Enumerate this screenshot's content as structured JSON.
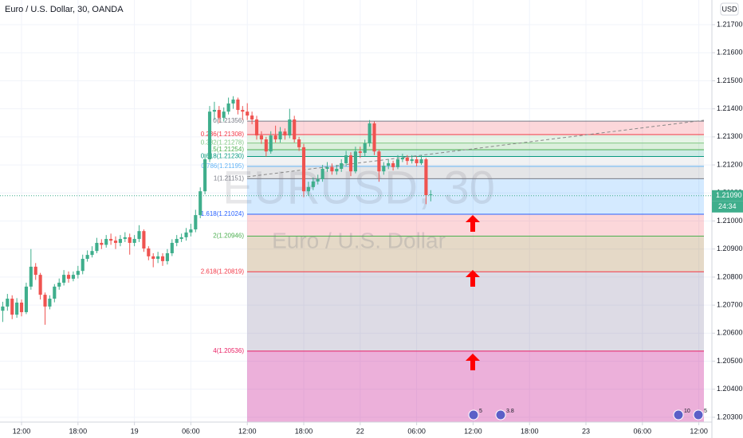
{
  "chart_data": {
    "type": "candlestick",
    "title": "Euro / U.S. Dollar, 30, OANDA",
    "watermark": "EURUSD, 30",
    "watermark_subtitle": "Euro / U.S. Dollar",
    "currency_button": "USD",
    "up_color": "#3fae8c",
    "down_color": "#ef5350",
    "grid": true,
    "xlim": [
      -2.29,
      73.39
    ],
    "ylim": [
      1.20283,
      1.21788
    ],
    "xticks": [
      {
        "value": 0,
        "label": "12:00"
      },
      {
        "value": 6,
        "label": "18:00"
      },
      {
        "value": 12,
        "label": "19"
      },
      {
        "value": 18,
        "label": "06:00"
      },
      {
        "value": 24,
        "label": "12:00"
      },
      {
        "value": 30,
        "label": "18:00"
      },
      {
        "value": 36,
        "label": "22"
      },
      {
        "value": 42,
        "label": "06:00"
      },
      {
        "value": 48,
        "label": "12:00"
      },
      {
        "value": 54,
        "label": "18:00"
      },
      {
        "value": 60,
        "label": "23"
      },
      {
        "value": 66,
        "label": "06:00"
      },
      {
        "value": 72,
        "label": "12:00"
      }
    ],
    "yticks": [
      {
        "value": 1.217,
        "label": "1.21700"
      },
      {
        "value": 1.216,
        "label": "1.21600"
      },
      {
        "value": 1.215,
        "label": "1.21500"
      },
      {
        "value": 1.214,
        "label": "1.21400"
      },
      {
        "value": 1.213,
        "label": "1.21300"
      },
      {
        "value": 1.212,
        "label": "1.21200"
      },
      {
        "value": 1.211,
        "label": "1.21100"
      },
      {
        "value": 1.21,
        "label": "1.21000"
      },
      {
        "value": 1.209,
        "label": "1.20900"
      },
      {
        "value": 1.208,
        "label": "1.20800"
      },
      {
        "value": 1.207,
        "label": "1.20700"
      },
      {
        "value": 1.206,
        "label": "1.20600"
      },
      {
        "value": 1.205,
        "label": "1.20500"
      },
      {
        "value": 1.204,
        "label": "1.20400"
      },
      {
        "value": 1.203,
        "label": "1.20300"
      }
    ],
    "x": [
      -2,
      -1.5,
      -1,
      -0.5,
      0,
      0.5,
      1,
      1.5,
      2,
      2.5,
      3,
      3.5,
      4,
      4.5,
      5,
      5.5,
      6,
      6.5,
      7,
      7.5,
      8,
      8.5,
      9,
      9.5,
      10,
      10.5,
      11,
      11.5,
      12,
      12.5,
      13,
      13.5,
      14,
      14.5,
      15,
      15.5,
      16,
      16.5,
      17,
      17.5,
      18,
      18.5,
      19,
      19.5,
      20,
      20.5,
      21,
      21.5,
      22,
      22.5,
      23,
      23.5,
      24,
      24.5,
      25,
      25.5,
      26,
      26.5,
      27,
      27.5,
      28,
      28.5,
      29,
      29.5,
      30,
      30.5,
      31,
      31.5,
      32,
      32.5,
      33,
      33.5,
      34,
      34.5,
      35,
      35.5,
      36,
      36.5,
      37,
      37.5,
      38,
      38.5,
      39,
      39.5,
      40,
      40.5,
      41,
      41.5,
      42,
      42.5,
      43,
      43.5
    ],
    "open": [
      1.2068,
      1.20695,
      1.20723,
      1.20666,
      1.20709,
      1.20675,
      1.20766,
      1.20837,
      1.20808,
      1.20737,
      1.20695,
      1.20723,
      1.20766,
      1.2078,
      1.20808,
      1.20794,
      1.20808,
      1.20822,
      1.20865,
      1.20879,
      1.20893,
      1.20922,
      1.20915,
      1.20936,
      1.2093,
      1.20922,
      1.20936,
      1.20942,
      1.20922,
      1.20936,
      1.20964,
      1.20902,
      1.20874,
      1.20865,
      1.20874,
      1.20857,
      1.20885,
      1.20922,
      1.20936,
      1.20942,
      1.20959,
      1.2097,
      1.21021,
      1.21106,
      1.2122,
      1.2139,
      1.21396,
      1.21368,
      1.2139,
      1.21419,
      1.21433,
      1.21396,
      1.2139,
      1.21376,
      1.21362,
      1.21305,
      1.21291,
      1.21248,
      1.21305,
      1.21291,
      1.21319,
      1.21305,
      1.21362,
      1.21291,
      1.21263,
      1.21106,
      1.21121,
      1.21141,
      1.21149,
      1.21186,
      1.21192,
      1.21177,
      1.21186,
      1.21206,
      1.21234,
      1.21177,
      1.21248,
      1.21243,
      1.21277,
      1.21348,
      1.21248,
      1.21177,
      1.21197,
      1.21206,
      1.21192,
      1.2122,
      1.21226,
      1.21214,
      1.2122,
      1.21206,
      1.2122,
      1.21092
    ],
    "high": [
      1.20712,
      1.2074,
      1.20735,
      1.20725,
      1.2072,
      1.2078,
      1.209,
      1.2085,
      1.20815,
      1.20745,
      1.20735,
      1.20775,
      1.20795,
      1.20825,
      1.2082,
      1.2082,
      1.2084,
      1.2088,
      1.20895,
      1.2091,
      1.2094,
      1.20935,
      1.2095,
      1.20955,
      1.20945,
      1.2095,
      1.2096,
      1.20955,
      1.2095,
      1.20985,
      1.2097,
      1.2091,
      1.20885,
      1.2089,
      1.20885,
      1.209,
      1.20935,
      1.2095,
      1.20955,
      1.20975,
      1.2099,
      1.2104,
      1.2112,
      1.2124,
      1.2141,
      1.21425,
      1.2141,
      1.21405,
      1.2144,
      1.21445,
      1.2144,
      1.2141,
      1.2142,
      1.2139,
      1.21375,
      1.2132,
      1.213,
      1.2132,
      1.2134,
      1.21335,
      1.2133,
      1.214,
      1.21375,
      1.213,
      1.21275,
      1.2114,
      1.21155,
      1.21165,
      1.212,
      1.2121,
      1.21205,
      1.212,
      1.2122,
      1.2125,
      1.21245,
      1.21265,
      1.21265,
      1.2129,
      1.2136,
      1.21355,
      1.21255,
      1.2121,
      1.2122,
      1.21215,
      1.21235,
      1.2124,
      1.21235,
      1.21235,
      1.2123,
      1.21235,
      1.21225,
      1.2111
    ],
    "low": [
      1.2064,
      1.2068,
      1.2065,
      1.20655,
      1.2066,
      1.20668,
      1.20755,
      1.2079,
      1.2072,
      1.2063,
      1.20685,
      1.2071,
      1.20755,
      1.2077,
      1.2078,
      1.20785,
      1.20795,
      1.2081,
      1.20855,
      1.2087,
      1.20885,
      1.209,
      1.20905,
      1.20915,
      1.209,
      1.2091,
      1.20925,
      1.2088,
      1.2091,
      1.20925,
      1.2089,
      1.2086,
      1.20835,
      1.2085,
      1.2084,
      1.20845,
      1.20875,
      1.2091,
      1.20925,
      1.2093,
      1.20945,
      1.2096,
      1.2101,
      1.21095,
      1.2121,
      1.2136,
      1.2135,
      1.21355,
      1.2138,
      1.214,
      1.2138,
      1.2136,
      1.2136,
      1.21345,
      1.2129,
      1.21275,
      1.2123,
      1.2124,
      1.2128,
      1.2128,
      1.2129,
      1.21295,
      1.2128,
      1.2125,
      1.21085,
      1.2109,
      1.2111,
      1.2113,
      1.2114,
      1.21175,
      1.21165,
      1.21165,
      1.21175,
      1.21195,
      1.2116,
      1.2117,
      1.21225,
      1.2123,
      1.21265,
      1.21235,
      1.2114,
      1.21165,
      1.21185,
      1.2118,
      1.21185,
      1.2121,
      1.212,
      1.21205,
      1.21195,
      1.212,
      1.2106,
      1.2107
    ],
    "close": [
      1.20695,
      1.20723,
      1.20666,
      1.20709,
      1.20675,
      1.20766,
      1.20837,
      1.20808,
      1.20737,
      1.20695,
      1.20723,
      1.20766,
      1.2078,
      1.20808,
      1.20794,
      1.20808,
      1.20822,
      1.20865,
      1.20879,
      1.20893,
      1.20922,
      1.20915,
      1.20936,
      1.2093,
      1.20922,
      1.20936,
      1.20942,
      1.20922,
      1.20936,
      1.20964,
      1.20902,
      1.20874,
      1.20865,
      1.20874,
      1.20857,
      1.20885,
      1.20922,
      1.20936,
      1.20942,
      1.20959,
      1.2097,
      1.21021,
      1.21106,
      1.2122,
      1.2139,
      1.21396,
      1.21368,
      1.2139,
      1.21419,
      1.21433,
      1.21396,
      1.2139,
      1.21376,
      1.21362,
      1.21305,
      1.21291,
      1.21248,
      1.21305,
      1.21291,
      1.21319,
      1.21305,
      1.21362,
      1.21291,
      1.21263,
      1.21106,
      1.21121,
      1.21141,
      1.21149,
      1.21186,
      1.21192,
      1.21177,
      1.21186,
      1.21206,
      1.21234,
      1.21177,
      1.21248,
      1.21243,
      1.21277,
      1.21348,
      1.21248,
      1.21177,
      1.21197,
      1.21206,
      1.21192,
      1.2122,
      1.21226,
      1.21214,
      1.2122,
      1.21206,
      1.2122,
      1.21092,
      1.21095
    ],
    "last_price": {
      "value": 1.2109,
      "label": "1.21090"
    },
    "countdown": "24:34",
    "fib_levels": [
      {
        "label": "0(1.21356)",
        "price": 1.21356,
        "color": "#787b86",
        "fill": "rgba(242,54,69,0.2)"
      },
      {
        "label": "0.236(1.21308)",
        "price": 1.21308,
        "color": "#f23645",
        "fill": "rgba(129,199,132,0.2)"
      },
      {
        "label": "0.382(1.21278)",
        "price": 1.21278,
        "color": "#81c784",
        "fill": "rgba(76,175,80,0.2)"
      },
      {
        "label": "0.5(1.21254)",
        "price": 1.21254,
        "color": "#4caf50",
        "fill": "rgba(8,153,129,0.2)"
      },
      {
        "label": "0.618(1.21230)",
        "price": 1.2123,
        "color": "#089981",
        "fill": "rgba(120,123,134,0.1)"
      },
      {
        "label": "0.786(1.21195)",
        "price": 1.21195,
        "color": "#64b5f6",
        "fill": "rgba(120,123,134,0.2)"
      },
      {
        "label": "1(1.21151)",
        "price": 1.21151,
        "color": "#787b86",
        "fill": "rgba(41,148,255,0.2)"
      },
      {
        "label": "1.618(1.21024)",
        "price": 1.21024,
        "color": "#2962ff",
        "fill": "rgba(242,54,69,0.2)"
      },
      {
        "label": "2(1.20946)",
        "price": 1.20946,
        "color": "#4caf50",
        "fill": "rgba(170,130,70,0.3)"
      },
      {
        "label": "2.618(1.20819)",
        "price": 1.20819,
        "color": "#f23645",
        "fill": "rgba(120,110,150,0.25)"
      },
      {
        "label": "4(1.20536)",
        "price": 1.20536,
        "color": "#e91e63",
        "fill": "rgba(200,30,150,0.35)"
      }
    ],
    "event_badges": [
      "5",
      "3.8",
      "10",
      "5"
    ]
  }
}
